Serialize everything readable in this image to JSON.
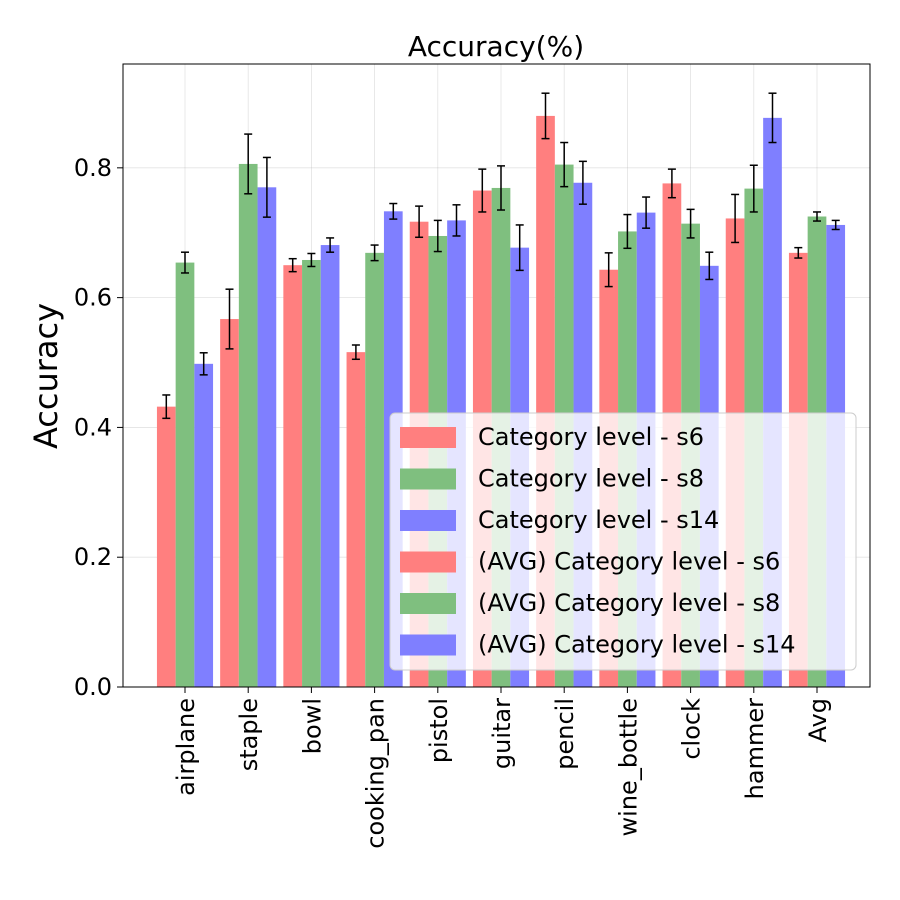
{
  "chart_data": {
    "type": "bar",
    "title": "Accuracy(%)",
    "xlabel": "",
    "ylabel": "Accuracy",
    "ylim": [
      0,
      0.96
    ],
    "yticks": [
      0.0,
      0.2,
      0.4,
      0.6,
      0.8
    ],
    "ytick_labels": [
      "0.0",
      "0.2",
      "0.4",
      "0.6",
      "0.8"
    ],
    "grid": true,
    "legend_position": "bottom-right",
    "categories": [
      "airplane",
      "staple",
      "bowl",
      "cooking_pan",
      "pistol",
      "guitar",
      "pencil",
      "wine_bottle",
      "clock",
      "hammer",
      "Avg"
    ],
    "series": [
      {
        "name": "Category level - s6",
        "color": "#ff7f7f",
        "values": [
          0.432,
          0.567,
          0.65,
          0.516,
          0.717,
          0.765,
          0.88,
          0.643,
          0.776,
          0.722,
          0.669
        ],
        "errors": [
          0.018,
          0.046,
          0.01,
          0.011,
          0.024,
          0.033,
          0.035,
          0.026,
          0.022,
          0.037,
          0.008
        ]
      },
      {
        "name": "Category level - s8",
        "color": "#7fbf7f",
        "values": [
          0.654,
          0.806,
          0.658,
          0.669,
          0.695,
          0.769,
          0.805,
          0.702,
          0.714,
          0.768,
          0.725
        ],
        "errors": [
          0.016,
          0.046,
          0.01,
          0.012,
          0.024,
          0.034,
          0.034,
          0.026,
          0.022,
          0.036,
          0.007
        ]
      },
      {
        "name": "Category level - s14",
        "color": "#7f7fff",
        "values": [
          0.498,
          0.77,
          0.681,
          0.733,
          0.719,
          0.677,
          0.777,
          0.731,
          0.649,
          0.877,
          0.712
        ],
        "errors": [
          0.017,
          0.046,
          0.011,
          0.012,
          0.024,
          0.035,
          0.033,
          0.024,
          0.021,
          0.038,
          0.007
        ]
      }
    ],
    "legend": [
      {
        "label": "Category level - s6",
        "color": "#ff7f7f"
      },
      {
        "label": "Category level - s8",
        "color": "#7fbf7f"
      },
      {
        "label": "Category level - s14",
        "color": "#7f7fff"
      },
      {
        "label": "(AVG) Category level - s6",
        "color": "#ff7f7f"
      },
      {
        "label": "(AVG) Category level - s8",
        "color": "#7fbf7f"
      },
      {
        "label": "(AVG) Category level - s14",
        "color": "#7f7fff"
      }
    ]
  }
}
